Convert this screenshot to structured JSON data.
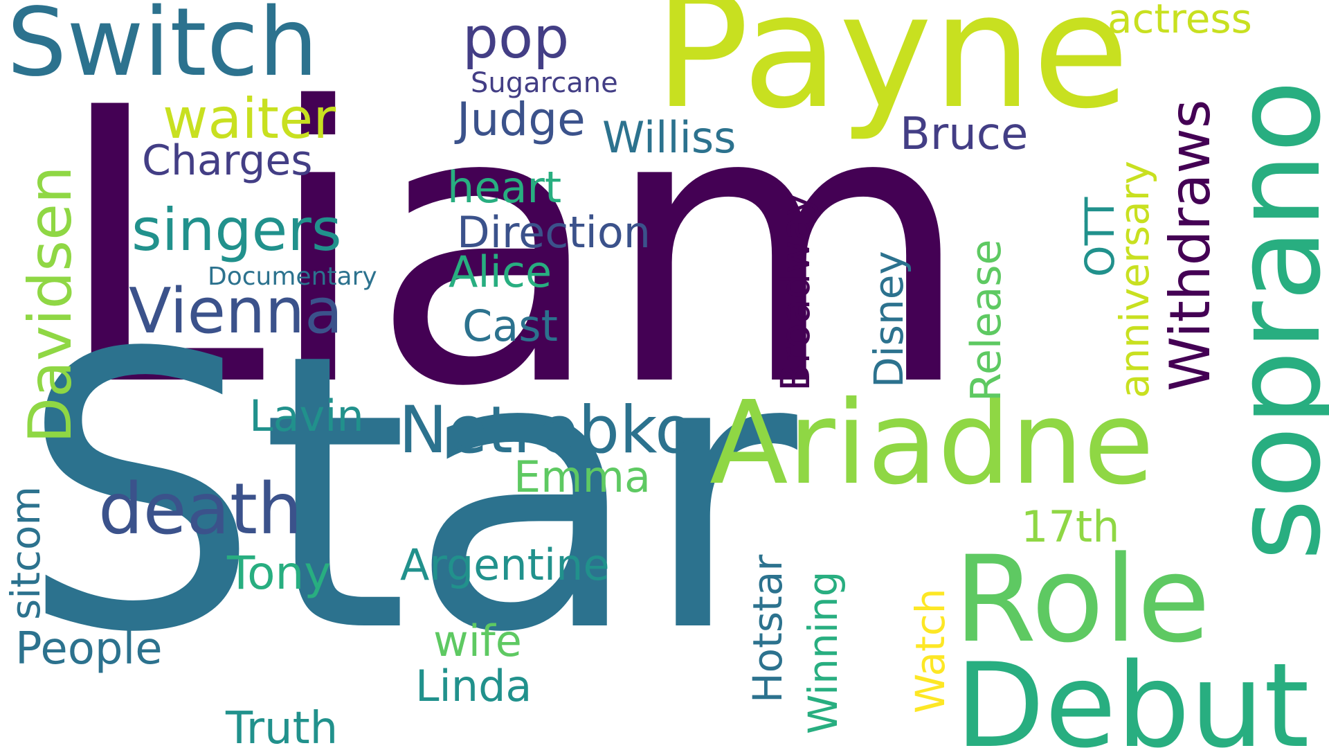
{
  "words": {
    "liam": "Liam",
    "star": "Star",
    "payne": "Payne",
    "switch": "Switch",
    "soprano": "soprano",
    "ariadne": "Ariadne",
    "role": "Role",
    "debut": "Debut",
    "netrebko": "Netrebko",
    "death": "death",
    "vienna": "Vienna",
    "singers": "singers",
    "waiter": "waiter",
    "pop": "pop",
    "davidsen": "Davidsen",
    "withdraws": "Withdraws",
    "actress": "actress",
    "sugarcane": "Sugarcane",
    "judge": "Judge",
    "williss": "Williss",
    "bruce": "Bruce",
    "charges": "Charges",
    "heart": "heart",
    "direction": "Direction",
    "alice": "Alice",
    "documentary": "Documentary",
    "cast": "Cast",
    "broadway": "Broadway",
    "disney": "Disney",
    "release": "Release",
    "ott": "OTT",
    "anniversary": "anniversary",
    "lavin": "Lavin",
    "emma": "Emma",
    "seventeenth": "17th",
    "tony": "Tony",
    "argentine": "Argentine",
    "sitcom": "sitcom",
    "people": "People",
    "wife": "wife",
    "linda": "Linda",
    "truth": "Truth",
    "hotstar": "Hotstar",
    "winning": "Winning",
    "watch": "Watch"
  },
  "colors": {
    "background": "#ffffff",
    "dark_purple": "#440154",
    "indigo": "#433e85",
    "slate_blue": "#3b528b",
    "steel_blue": "#2c728e",
    "teal": "#21918c",
    "sea_green": "#28ae80",
    "green": "#5ec962",
    "light_green": "#8fd744",
    "yellow_green": "#c8e020",
    "yellow": "#fde725"
  }
}
